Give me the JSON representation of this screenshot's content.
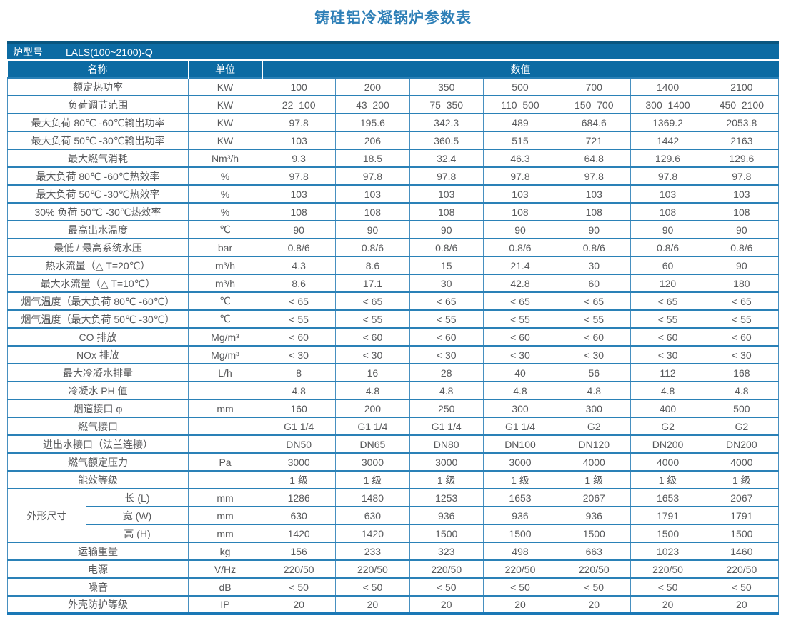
{
  "title": "铸硅铝冷凝锅炉参数表",
  "model_bar": {
    "label": "炉型号",
    "value": "LALS(100~2100)-Q"
  },
  "column_headers": {
    "name": "名称",
    "unit": "单位",
    "value": "数值"
  },
  "colors": {
    "header_bg": "#0c6ba3",
    "header_top_strip": "#0a567f",
    "grid_line": "#2a81b7",
    "bottom_bar": "#1a78b6",
    "title_text": "#2e7fb7",
    "body_text": "#58595b"
  },
  "table": {
    "rows": [
      {
        "name": "额定热功率",
        "unit": "KW",
        "values": [
          "100",
          "200",
          "350",
          "500",
          "700",
          "1400",
          "2100"
        ]
      },
      {
        "name": "负荷调节范围",
        "unit": "KW",
        "values": [
          "22–100",
          "43–200",
          "75–350",
          "110–500",
          "150–700",
          "300–1400",
          "450–2100"
        ]
      },
      {
        "name": "最大负荷 80℃ -60℃输出功率",
        "unit": "KW",
        "values": [
          "97.8",
          "195.6",
          "342.3",
          "489",
          "684.6",
          "1369.2",
          "2053.8"
        ]
      },
      {
        "name": "最大负荷 50℃ -30℃输出功率",
        "unit": "KW",
        "values": [
          "103",
          "206",
          "360.5",
          "515",
          "721",
          "1442",
          "2163"
        ]
      },
      {
        "name": "最大燃气消耗",
        "unit": "Nm³/h",
        "values": [
          "9.3",
          "18.5",
          "32.4",
          "46.3",
          "64.8",
          "129.6",
          "129.6"
        ]
      },
      {
        "name": "最大负荷 80℃ -60℃热效率",
        "unit": "%",
        "values": [
          "97.8",
          "97.8",
          "97.8",
          "97.8",
          "97.8",
          "97.8",
          "97.8"
        ]
      },
      {
        "name": "最大负荷 50℃ -30℃热效率",
        "unit": "%",
        "values": [
          "103",
          "103",
          "103",
          "103",
          "103",
          "103",
          "103"
        ]
      },
      {
        "name": "30% 负荷 50℃ -30℃热效率",
        "unit": "%",
        "values": [
          "108",
          "108",
          "108",
          "108",
          "108",
          "108",
          "108"
        ]
      },
      {
        "name": "最高出水温度",
        "unit": "℃",
        "values": [
          "90",
          "90",
          "90",
          "90",
          "90",
          "90",
          "90"
        ]
      },
      {
        "name": "最低 / 最高系统水压",
        "unit": "bar",
        "values": [
          "0.8/6",
          "0.8/6",
          "0.8/6",
          "0.8/6",
          "0.8/6",
          "0.8/6",
          "0.8/6"
        ]
      },
      {
        "name": "热水流量（△ T=20℃）",
        "unit": "m³/h",
        "values": [
          "4.3",
          "8.6",
          "15",
          "21.4",
          "30",
          "60",
          "90"
        ]
      },
      {
        "name": "最大水流量（△ T=10℃）",
        "unit": "m³/h",
        "values": [
          "8.6",
          "17.1",
          "30",
          "42.8",
          "60",
          "120",
          "180"
        ]
      },
      {
        "name": "烟气温度（最大负荷 80℃ -60℃）",
        "unit": "℃",
        "values": [
          "< 65",
          "< 65",
          "< 65",
          "< 65",
          "< 65",
          "< 65",
          "< 65"
        ]
      },
      {
        "name": "烟气温度（最大负荷 50℃ -30℃）",
        "unit": "℃",
        "values": [
          "< 55",
          "< 55",
          "< 55",
          "< 55",
          "< 55",
          "< 55",
          "< 55"
        ]
      },
      {
        "name": "CO 排放",
        "unit": "Mg/m³",
        "values": [
          "< 60",
          "< 60",
          "< 60",
          "< 60",
          "< 60",
          "< 60",
          "< 60"
        ]
      },
      {
        "name": "NOx 排放",
        "unit": "Mg/m³",
        "values": [
          "< 30",
          "< 30",
          "< 30",
          "< 30",
          "< 30",
          "< 30",
          "< 30"
        ]
      },
      {
        "name": "最大冷凝水排量",
        "unit": "L/h",
        "values": [
          "8",
          "16",
          "28",
          "40",
          "56",
          "112",
          "168"
        ]
      },
      {
        "name": "冷凝水 PH 值",
        "unit": "",
        "values": [
          "4.8",
          "4.8",
          "4.8",
          "4.8",
          "4.8",
          "4.8",
          "4.8"
        ]
      },
      {
        "name": "烟道接口 φ",
        "unit": "mm",
        "values": [
          "160",
          "200",
          "250",
          "300",
          "300",
          "400",
          "500"
        ]
      },
      {
        "name": "燃气接口",
        "unit": "",
        "values": [
          "G1 1/4",
          "G1 1/4",
          "G1 1/4",
          "G1 1/4",
          "G2",
          "G2",
          "G2"
        ]
      },
      {
        "name": "进出水接口（法兰连接）",
        "unit": "",
        "values": [
          "DN50",
          "DN65",
          "DN80",
          "DN100",
          "DN120",
          "DN200",
          "DN200"
        ]
      },
      {
        "name": "燃气额定压力",
        "unit": "Pa",
        "values": [
          "3000",
          "3000",
          "3000",
          "3000",
          "4000",
          "4000",
          "4000"
        ]
      },
      {
        "name": "能效等级",
        "unit": "",
        "values": [
          "1 级",
          "1 级",
          "1 级",
          "1 级",
          "1 级",
          "1 级",
          "1 级"
        ]
      },
      {
        "group": "外形尺寸",
        "subrows": [
          {
            "name": "长 (L)",
            "unit": "mm",
            "values": [
              "1286",
              "1480",
              "1253",
              "1653",
              "2067",
              "1653",
              "2067"
            ]
          },
          {
            "name": "宽 (W)",
            "unit": "mm",
            "values": [
              "630",
              "630",
              "936",
              "936",
              "936",
              "1791",
              "1791"
            ]
          },
          {
            "name": "高 (H)",
            "unit": "mm",
            "values": [
              "1420",
              "1420",
              "1500",
              "1500",
              "1500",
              "1500",
              "1500"
            ]
          }
        ]
      },
      {
        "name": "运输重量",
        "unit": "kg",
        "values": [
          "156",
          "233",
          "323",
          "498",
          "663",
          "1023",
          "1460"
        ]
      },
      {
        "name": "电源",
        "unit": "V/Hz",
        "values": [
          "220/50",
          "220/50",
          "220/50",
          "220/50",
          "220/50",
          "220/50",
          "220/50"
        ]
      },
      {
        "name": "噪音",
        "unit": "dB",
        "values": [
          "< 50",
          "< 50",
          "< 50",
          "< 50",
          "< 50",
          "< 50",
          "< 50"
        ]
      },
      {
        "name": "外壳防护等级",
        "unit": "IP",
        "values": [
          "20",
          "20",
          "20",
          "20",
          "20",
          "20",
          "20"
        ]
      }
    ]
  }
}
